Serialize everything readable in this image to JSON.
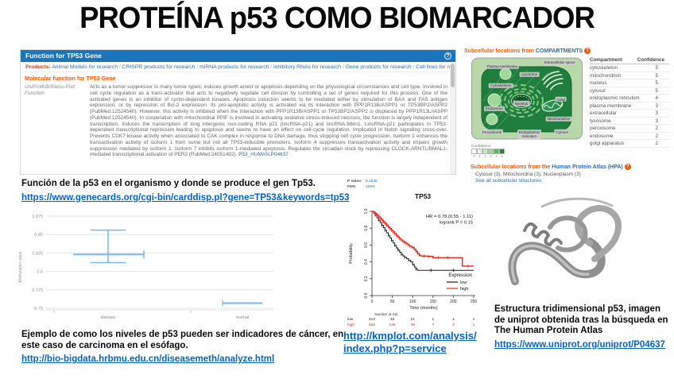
{
  "slide": {
    "title": "PROTEÍNA p53 COMO BIOMARCADOR"
  },
  "colors": {
    "header_blue": "#1B75BC",
    "orange": "#E85D0C",
    "link_blue": "#2A6DB5",
    "url_blue": "#0563C1",
    "km_red": "#E8261F",
    "km_black": "#1A1A1A",
    "box_blue": "#7CB5EC",
    "cell_green_dark": "#1F7D3D",
    "cell_green_light": "#B9D8AA",
    "confidence_scale": [
      "#FFFFFF",
      "#E8F4E6",
      "#CBE6C8",
      "#A3D49F",
      "#63B05E",
      "#2F7D33"
    ]
  },
  "genecards": {
    "window_title": "Function for TP53 Gene",
    "help_icon": "?",
    "products_label": "Products:",
    "products_links": [
      "Animal Models for research",
      "CRISPR products for research",
      "miRNA products for research",
      "inhibitory RNAs for research",
      "Gene products for research",
      "Cell lines for research"
    ],
    "section_heading": "Molecular function for TP53 Gene",
    "source_line1": "UniProtKB/Swiss-Prot",
    "source_line2": "Function",
    "function_text": "Acts as a tumor suppressor in many tumor types; induces growth arrest or apoptosis depending on the physiological circumstances and cell type. Involved in cell cycle regulation as a trans-activator that acts to negatively regulate cell division by controlling a set of genes required for this process. One of the activated genes is an inhibitor of cyclin-dependent kinases. Apoptosis induction seems to be mediated either by stimulation of BAX and FAS antigen expression, or by repression of Bcl-2 expression. Its pro-apoptotic activity is activated via its interaction with PPP1R13B/ASPP1 or TP53BP2/ASPP2 (PubMed:12524540). However, this activity is inhibited when the interaction with PPP1R13B/ASPP1 or TP53BP2/ASPP2 is displaced by PPP1R13L/iASPP (PubMed:12524540). In cooperation with mitochondrial PPIF is involved in activating oxidative stress-induced necrosis; the function is largely independent of transcription. Induces the transcription of long intergenic non-coding RNA p21 (lincRNA-p21) and lincRNA-Mkln1. LincRNA-p21 participates in TP53-dependent transcriptional repression leading to apoptosis and seems to have an effect on cell-cycle regulation. Implicated in Notch signaling cross-over. Prevents CDK7 kinase activity when associated to CAK complex in response to DNA damage, thus stopping cell cycle progression. Isoform 2 enhances the transactivation activity of isoform 1 from some but not all TP53-inducible promoters. Isoform 4 suppresses transactivation activity and impairs growth suppression mediated by isoform 1. Isoform 7 inhibits isoform 1-mediated apoptosis. Regulates the circadian clock by repressing CLOCK-ARNTL/BMAL1-mediated transcriptional activation of PER2 (PubMed:24051492).",
    "trailing_link": "P53_HUMAN,P04637"
  },
  "compartments": {
    "header_prefix": "Subcellular locations from ",
    "header_link": "COMPARTMENTS",
    "help_icon": "?",
    "diagram_labels": [
      "Plasma membrane",
      "Extracellular space",
      "Lysosome",
      "Cytoskeleton",
      "Endosome",
      "Peroxisome",
      "Nucleus",
      "Endoplasmic reticulum",
      "Golgi",
      "Mitochondrion",
      "Cytosol"
    ],
    "confidence_legend": {
      "label": "Confidence",
      "values": [
        "0",
        "1",
        "2",
        "3",
        "4",
        "5"
      ]
    },
    "table": {
      "headers": [
        "Compartment",
        "Confidence"
      ],
      "rows": [
        [
          "cytoskeleton",
          "5"
        ],
        [
          "mitochondrion",
          "5"
        ],
        [
          "nucleus",
          "5"
        ],
        [
          "cytosol",
          "5"
        ],
        [
          "endoplasmic reticulum",
          "4"
        ],
        [
          "plasma membrane",
          "3"
        ],
        [
          "extracellular",
          "3"
        ],
        [
          "lysosome",
          "3"
        ],
        [
          "peroxisome",
          "2"
        ],
        [
          "endosome",
          "2"
        ],
        [
          "golgi apparatus",
          "2"
        ]
      ]
    },
    "hpa_prefix": "Subcellular locations from the ",
    "hpa_link": "Human Protein Atlas (HPA)",
    "hpa_locations": "Cytosol (3), Mitochondria (3), Nucleoplasm (3)",
    "hpa_see_all": "See all subcellular structures"
  },
  "caption_genecards": {
    "text": "Función de la p53 en el organismo y donde se produce el gen Tp53.",
    "url": "https://www.genecards.org/cgi-bin/carddisp.pl?gene=TP53&keywords=tp53"
  },
  "caption_methylation": {
    "text": "Ejemplo de como los niveles de p53 pueden ser indicadores de cáncer, en este caso de carcinoma en el esófago.",
    "url": "http://bio-bigdata.hrbmu.edu.cn/diseasemeth/analyze.html"
  },
  "caption_structure": {
    "text": "Estructura tridimensional p53, imagen de uniprot obtenida tras la búsqueda en The Human Protein Atlas",
    "url": "https://www.uniprot.org/uniprot/P04637"
  },
  "km_url": "http://kmplot.com/analysis/index.php?p=service",
  "chart_data": [
    {
      "type": "box",
      "title": "",
      "ylabel": "Methylation value",
      "categories": [
        "disease",
        "normal"
      ],
      "yticks": [
        0.875,
        0.85,
        0.825,
        0.8,
        0.775,
        0.75
      ],
      "ylim": [
        0.745,
        0.88
      ],
      "grid": true,
      "series": [
        {
          "name": "disease",
          "mean": 0.823,
          "upper": 0.856,
          "lower": 0.812
        },
        {
          "name": "normal",
          "mean": 0.757,
          "upper": 0.76,
          "lower": 0.754
        }
      ],
      "color": "#7CB5EC"
    },
    {
      "type": "line",
      "title": "TP53",
      "xlabel": "Time (months)",
      "ylabel": "Probability",
      "xticks": [
        0,
        50,
        100,
        150,
        200,
        250
      ],
      "yticks": [
        0.0,
        0.2,
        0.4,
        0.6,
        0.8,
        1.0
      ],
      "xlim": [
        0,
        255
      ],
      "ylim": [
        0,
        1
      ],
      "annotation": [
        "HR = 0.78 (0.55 - 1.11)",
        "logrank P = 0.15"
      ],
      "stats_lines": [
        {
          "label": "P Value:",
          "value": "0.1546"
        },
        {
          "label": "FDR:",
          "value": "100%"
        }
      ],
      "legend_title": "Expression",
      "legend_position": "bottom-right",
      "series": [
        {
          "name": "low",
          "color": "#1A1A1A",
          "points": [
            [
              0,
              1.0
            ],
            [
              4,
              0.98
            ],
            [
              8,
              0.955
            ],
            [
              12,
              0.925
            ],
            [
              16,
              0.895
            ],
            [
              20,
              0.865
            ],
            [
              24,
              0.835
            ],
            [
              28,
              0.805
            ],
            [
              32,
              0.775
            ],
            [
              36,
              0.745
            ],
            [
              40,
              0.715
            ],
            [
              44,
              0.685
            ],
            [
              48,
              0.655
            ],
            [
              52,
              0.625
            ],
            [
              56,
              0.595
            ],
            [
              60,
              0.565
            ],
            [
              64,
              0.54
            ],
            [
              68,
              0.515
            ],
            [
              72,
              0.49
            ],
            [
              76,
              0.47
            ],
            [
              80,
              0.455
            ],
            [
              85,
              0.44
            ],
            [
              90,
              0.42
            ],
            [
              95,
              0.4
            ],
            [
              100,
              0.37
            ],
            [
              104,
              0.34
            ],
            [
              108,
              0.315
            ],
            [
              112,
              0.3
            ],
            [
              250,
              0.3
            ]
          ],
          "late_censors": [
            [
              145,
              0.3
            ],
            [
              200,
              0.3
            ]
          ]
        },
        {
          "name": "high",
          "color": "#E8261F",
          "points": [
            [
              0,
              1.0
            ],
            [
              4,
              0.99
            ],
            [
              8,
              0.975
            ],
            [
              12,
              0.955
            ],
            [
              16,
              0.935
            ],
            [
              20,
              0.915
            ],
            [
              24,
              0.895
            ],
            [
              28,
              0.875
            ],
            [
              32,
              0.855
            ],
            [
              36,
              0.835
            ],
            [
              40,
              0.815
            ],
            [
              44,
              0.795
            ],
            [
              48,
              0.775
            ],
            [
              52,
              0.755
            ],
            [
              56,
              0.735
            ],
            [
              60,
              0.715
            ],
            [
              64,
              0.695
            ],
            [
              68,
              0.675
            ],
            [
              72,
              0.66
            ],
            [
              76,
              0.645
            ],
            [
              80,
              0.63
            ],
            [
              84,
              0.62
            ],
            [
              88,
              0.605
            ],
            [
              92,
              0.59
            ],
            [
              96,
              0.58
            ],
            [
              100,
              0.57
            ],
            [
              104,
              0.55
            ],
            [
              108,
              0.525
            ],
            [
              112,
              0.5
            ],
            [
              116,
              0.48
            ],
            [
              120,
              0.47
            ],
            [
              135,
              0.465
            ],
            [
              150,
              0.45
            ],
            [
              218,
              0.45
            ],
            [
              222,
              0.35
            ],
            [
              250,
              0.35
            ]
          ],
          "late_censors": [
            [
              128,
              0.47
            ],
            [
              140,
              0.465
            ],
            [
              163,
              0.45
            ],
            [
              186,
              0.45
            ],
            [
              236,
              0.35
            ]
          ]
        }
      ],
      "number_at_risk": {
        "label": "Number at risk",
        "rows": [
          {
            "name": "low",
            "values": [
              213,
              45,
              21,
              1,
              1,
              1
            ]
          },
          {
            "name": "high",
            "values": [
              622,
              135,
              49,
              7,
              4,
              1
            ]
          }
        ]
      }
    }
  ]
}
